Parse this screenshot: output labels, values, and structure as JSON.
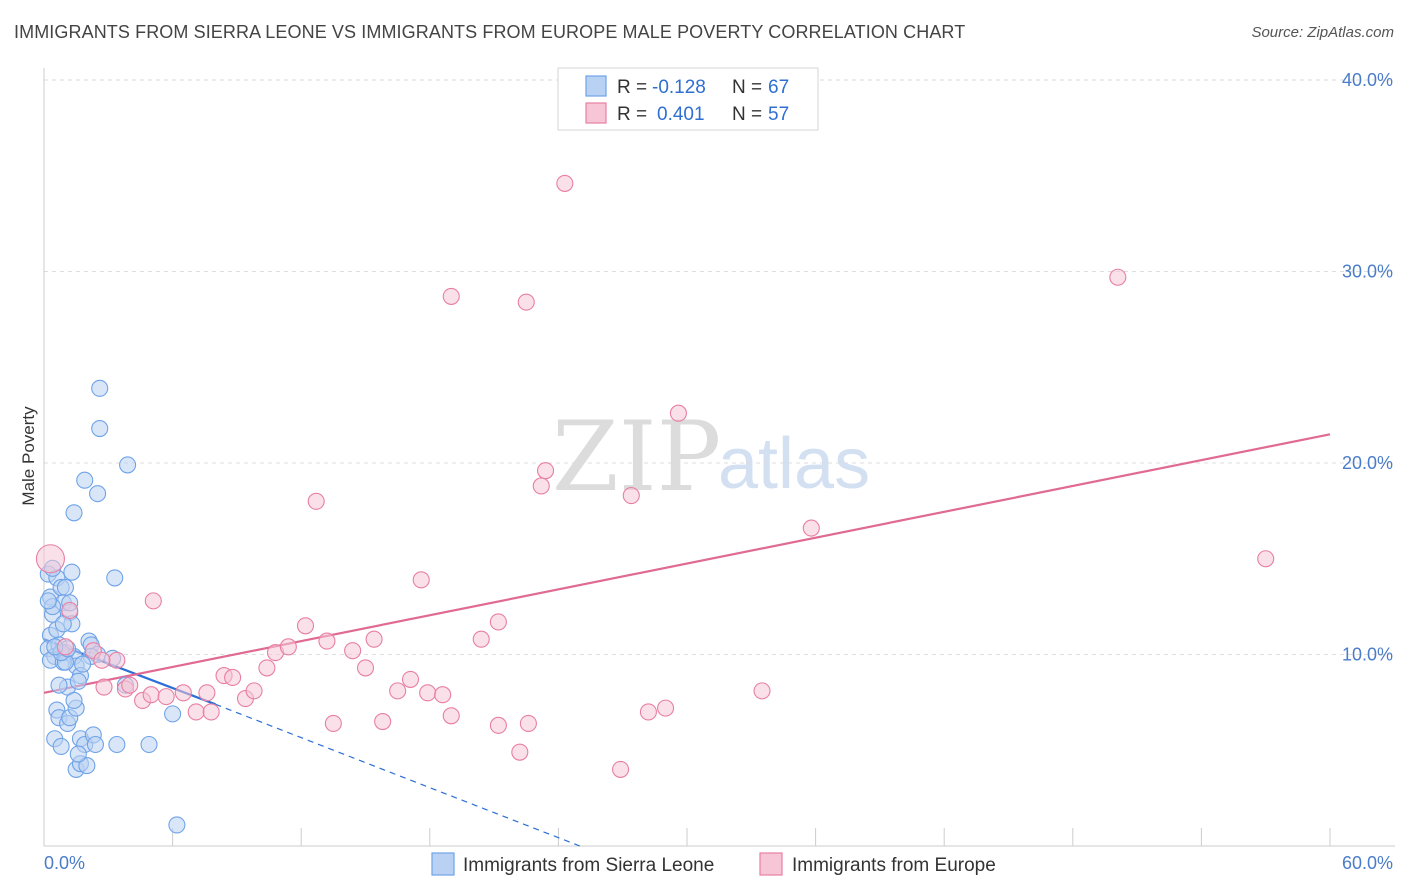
{
  "title": "IMMIGRANTS FROM SIERRA LEONE VS IMMIGRANTS FROM EUROPE MALE POVERTY CORRELATION CHART",
  "source": "Source: ZipAtlas.com",
  "watermark": {
    "zip": "ZIP",
    "atlas": "atlas"
  },
  "colors": {
    "blue": "#6fa3e8",
    "blue_fill": "#b9d2f3",
    "blue_line": "#2b6ed6",
    "pink": "#e87fa3",
    "pink_fill": "#f6c6d6",
    "pink_line": "#e06a93",
    "grid": "#dddddd",
    "tick_text": "#4a7cc9"
  },
  "legend": {
    "rows": [
      {
        "r_label": "R =",
        "r_value": "-0.128",
        "n_label": "N =",
        "n_value": "67"
      },
      {
        "r_label": "R =",
        "r_value": "0.401",
        "n_label": "N =",
        "n_value": "57"
      }
    ]
  },
  "chart_data": {
    "type": "scatter",
    "xlabel": "",
    "ylabel": "Male Poverty",
    "xlim": [
      0,
      60
    ],
    "ylim": [
      0,
      40
    ],
    "x_tick_labels": [
      "0.0%",
      "60.0%"
    ],
    "y_ticks": [
      10,
      20,
      30,
      40
    ],
    "y_tick_labels": [
      "10.0%",
      "20.0%",
      "30.0%",
      "40.0%"
    ],
    "series": [
      {
        "name": "Immigrants from Sierra Leone",
        "color": "blue",
        "trend": {
          "x0": 0,
          "y0": 10.8,
          "x1": 8,
          "y1": 7.4,
          "dash_to_x": 25,
          "dash_to_y": 0.0
        },
        "points": [
          [
            0.2,
            14.2
          ],
          [
            0.3,
            13.0
          ],
          [
            0.4,
            12.1
          ],
          [
            0.3,
            11.0
          ],
          [
            0.2,
            10.3
          ],
          [
            0.5,
            9.9
          ],
          [
            0.3,
            9.7
          ],
          [
            0.6,
            14.0
          ],
          [
            0.8,
            13.5
          ],
          [
            1.0,
            13.5
          ],
          [
            0.9,
            12.7
          ],
          [
            1.2,
            12.2
          ],
          [
            1.3,
            14.3
          ],
          [
            0.6,
            11.3
          ],
          [
            0.7,
            10.5
          ],
          [
            1.0,
            10.1
          ],
          [
            1.4,
            9.9
          ],
          [
            1.5,
            9.4
          ],
          [
            1.7,
            8.9
          ],
          [
            1.1,
            8.3
          ],
          [
            1.6,
            8.6
          ],
          [
            0.7,
            8.4
          ],
          [
            0.9,
            9.6
          ],
          [
            1.3,
            11.6
          ],
          [
            0.6,
            7.1
          ],
          [
            0.7,
            6.7
          ],
          [
            1.1,
            6.4
          ],
          [
            1.2,
            6.7
          ],
          [
            1.5,
            7.2
          ],
          [
            1.4,
            7.6
          ],
          [
            0.5,
            5.6
          ],
          [
            0.8,
            5.2
          ],
          [
            1.7,
            5.6
          ],
          [
            1.9,
            5.3
          ],
          [
            2.3,
            5.8
          ],
          [
            2.4,
            5.3
          ],
          [
            3.4,
            5.3
          ],
          [
            4.9,
            5.3
          ],
          [
            1.5,
            4.0
          ],
          [
            1.7,
            4.3
          ],
          [
            2.0,
            4.2
          ],
          [
            1.6,
            4.8
          ],
          [
            2.1,
            10.7
          ],
          [
            2.2,
            10.5
          ],
          [
            2.5,
            10.0
          ],
          [
            3.2,
            9.8
          ],
          [
            0.4,
            12.5
          ],
          [
            0.2,
            12.8
          ],
          [
            1.0,
            9.6
          ],
          [
            0.8,
            10.1
          ],
          [
            1.1,
            10.3
          ],
          [
            0.5,
            10.4
          ],
          [
            0.9,
            11.6
          ],
          [
            2.6,
            23.9
          ],
          [
            2.6,
            21.8
          ],
          [
            3.9,
            19.9
          ],
          [
            1.9,
            19.1
          ],
          [
            2.5,
            18.4
          ],
          [
            1.4,
            17.4
          ],
          [
            3.3,
            14.0
          ],
          [
            6.0,
            6.9
          ],
          [
            6.2,
            1.1
          ],
          [
            3.8,
            8.4
          ],
          [
            2.2,
            9.9
          ],
          [
            0.4,
            14.5
          ],
          [
            1.2,
            12.7
          ],
          [
            1.8,
            9.5
          ]
        ]
      },
      {
        "name": "Immigrants from Europe",
        "color": "pink",
        "trend": {
          "x0": 0,
          "y0": 8.0,
          "x1": 60,
          "y1": 21.5
        },
        "points": [
          [
            0.3,
            15.0
          ],
          [
            1.2,
            12.3
          ],
          [
            1.0,
            10.4
          ],
          [
            2.3,
            10.2
          ],
          [
            3.4,
            9.7
          ],
          [
            2.7,
            9.7
          ],
          [
            3.8,
            8.2
          ],
          [
            2.8,
            8.3
          ],
          [
            4.6,
            7.6
          ],
          [
            5.0,
            7.9
          ],
          [
            5.7,
            7.8
          ],
          [
            6.5,
            8.0
          ],
          [
            7.1,
            7.0
          ],
          [
            7.6,
            8.0
          ],
          [
            7.8,
            7.0
          ],
          [
            8.4,
            8.9
          ],
          [
            8.8,
            8.8
          ],
          [
            9.4,
            7.7
          ],
          [
            9.8,
            8.1
          ],
          [
            10.4,
            9.3
          ],
          [
            10.8,
            10.1
          ],
          [
            11.4,
            10.4
          ],
          [
            12.2,
            11.5
          ],
          [
            13.2,
            10.7
          ],
          [
            13.5,
            6.4
          ],
          [
            14.4,
            10.2
          ],
          [
            15.0,
            9.3
          ],
          [
            15.4,
            10.8
          ],
          [
            15.8,
            6.5
          ],
          [
            16.5,
            8.1
          ],
          [
            17.1,
            8.7
          ],
          [
            17.6,
            13.9
          ],
          [
            17.9,
            8.0
          ],
          [
            18.6,
            7.9
          ],
          [
            19.0,
            6.8
          ],
          [
            20.4,
            10.8
          ],
          [
            21.2,
            11.7
          ],
          [
            21.2,
            6.3
          ],
          [
            22.2,
            4.9
          ],
          [
            22.6,
            6.4
          ],
          [
            23.2,
            18.8
          ],
          [
            23.4,
            19.6
          ],
          [
            24.3,
            34.6
          ],
          [
            26.9,
            4.0
          ],
          [
            27.4,
            18.3
          ],
          [
            28.2,
            7.0
          ],
          [
            29.0,
            7.2
          ],
          [
            29.6,
            22.6
          ],
          [
            33.5,
            8.1
          ],
          [
            35.8,
            16.6
          ],
          [
            19.0,
            28.7
          ],
          [
            22.5,
            28.4
          ],
          [
            50.1,
            29.7
          ],
          [
            57.0,
            15.0
          ],
          [
            12.7,
            18.0
          ],
          [
            5.1,
            12.8
          ],
          [
            4.0,
            8.4
          ]
        ]
      }
    ]
  },
  "bottom_legend": {
    "items": [
      {
        "label": "Immigrants from Sierra Leone",
        "color": "blue"
      },
      {
        "label": "Immigrants from Europe",
        "color": "pink"
      }
    ]
  }
}
